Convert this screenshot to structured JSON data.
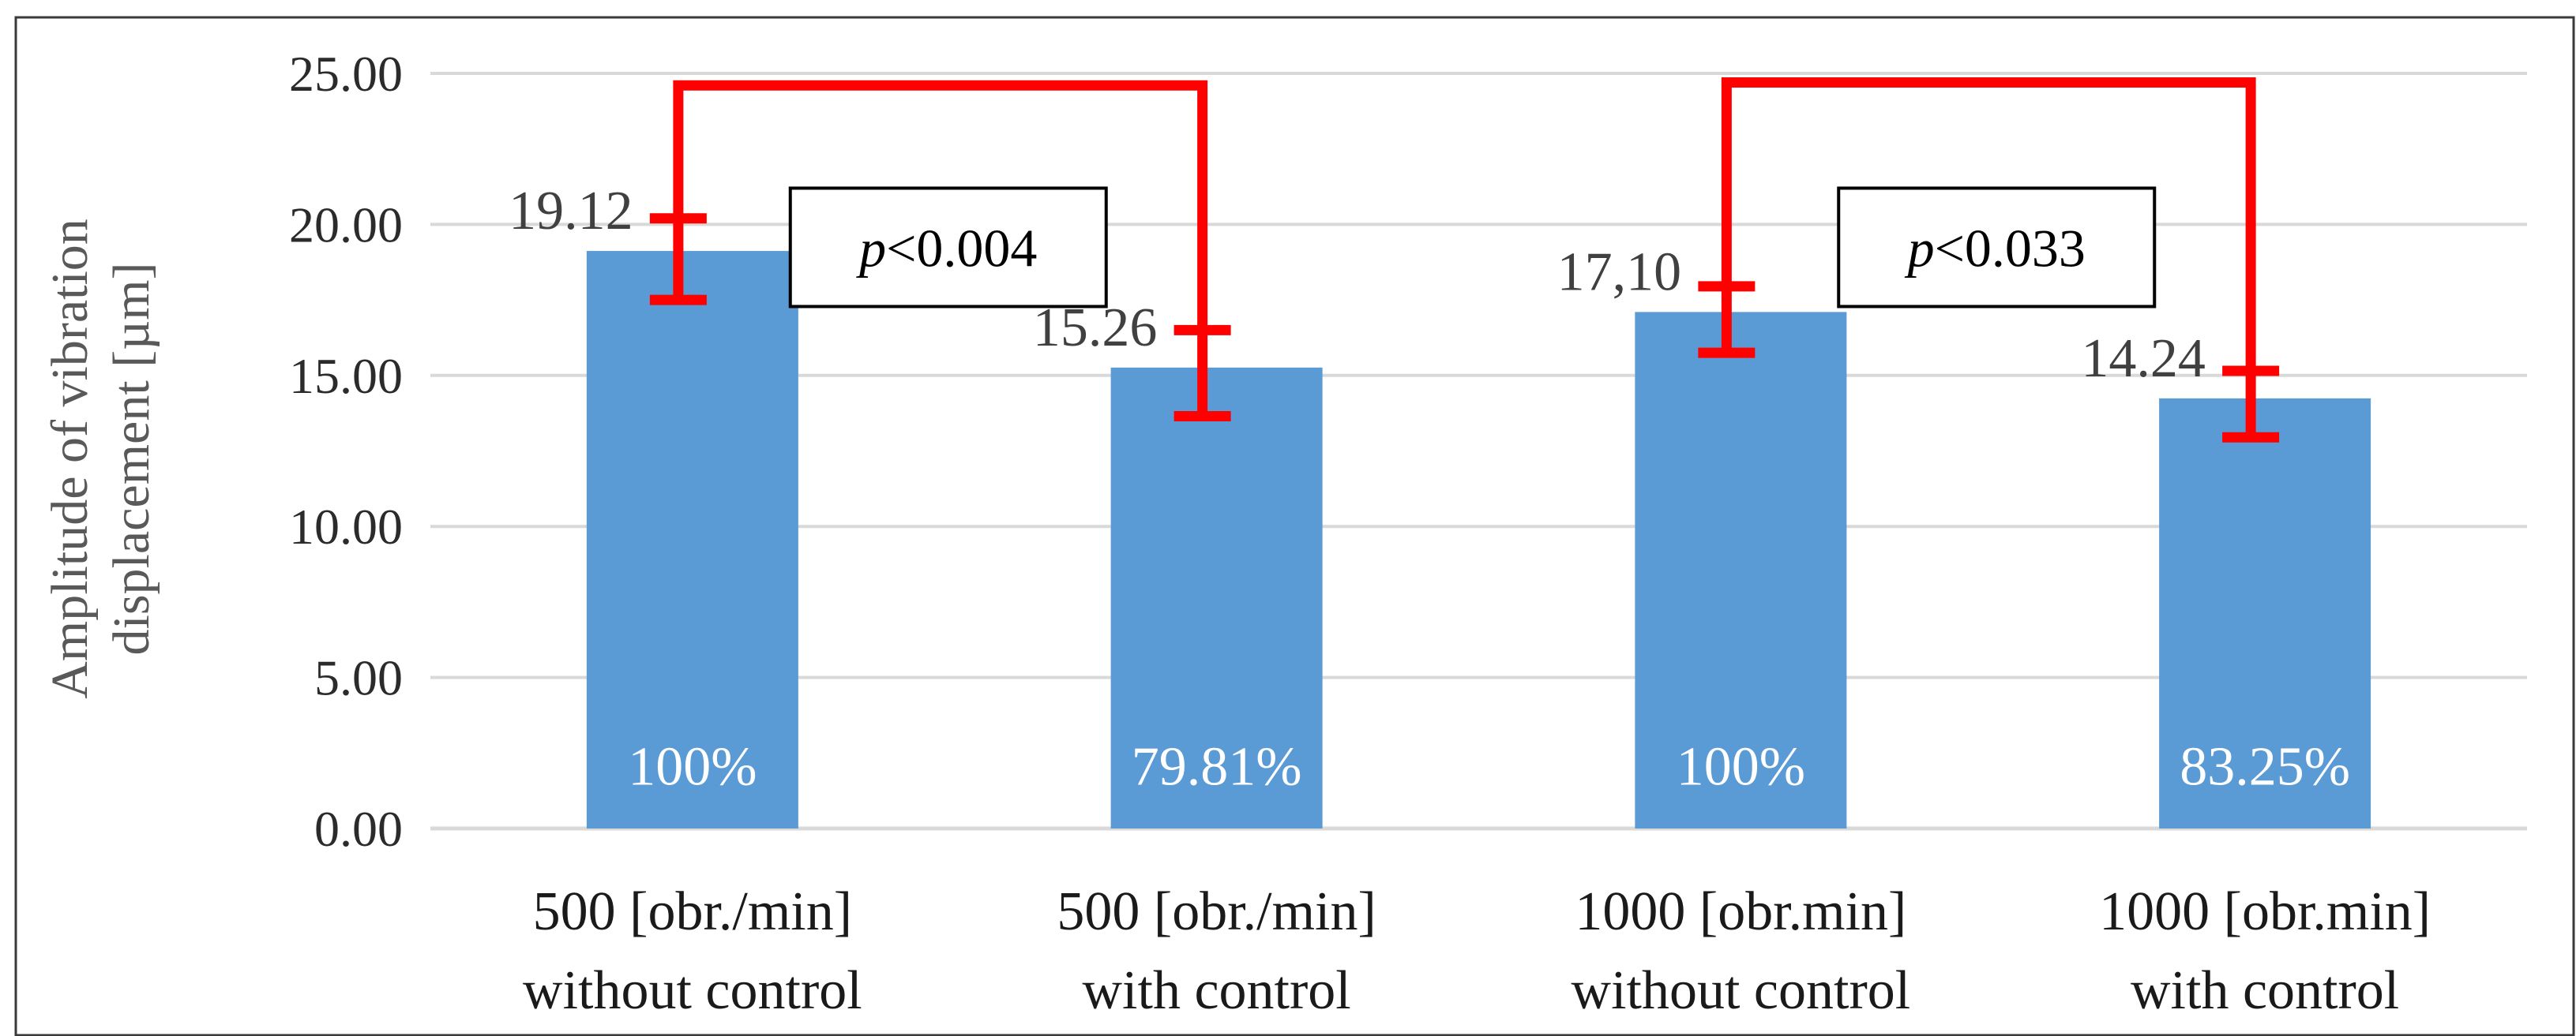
{
  "chart_data": {
    "type": "bar",
    "title": "",
    "xlabel": "",
    "ylabel": "Amplitude of vibration displacement [µm]",
    "ylabel_lines": [
      "Amplitude of vibration",
      "displacement [µm]"
    ],
    "ylim": [
      0,
      25
    ],
    "yticks": [
      0,
      5,
      10,
      15,
      20,
      25
    ],
    "ytick_labels": [
      "0.00",
      "5.00",
      "10.00",
      "15.00",
      "20.00",
      "25.00"
    ],
    "grid": true,
    "categories": [
      [
        "500 [obr./min]",
        "without control"
      ],
      [
        "500 [obr./min]",
        "with control"
      ],
      [
        "1000 [obr.min]",
        "without control"
      ],
      [
        "1000 [obr.min]",
        "with control"
      ]
    ],
    "values": [
      19.12,
      15.26,
      17.1,
      14.24
    ],
    "value_labels": [
      "19.12",
      "15.26",
      "17,10",
      "14.24"
    ],
    "percent_labels": [
      "100%",
      "79.81%",
      "100%",
      "83.25%"
    ],
    "error_bars": [
      {
        "low": 17.5,
        "high": 20.2
      },
      {
        "low": 13.65,
        "high": 16.5
      },
      {
        "low": 15.75,
        "high": 17.95
      },
      {
        "low": 12.95,
        "high": 15.15
      }
    ],
    "significance": [
      {
        "between": [
          0,
          1
        ],
        "label_prefix": "p",
        "label_suffix": "<0.004",
        "level": 24.6
      },
      {
        "between": [
          2,
          3
        ],
        "label_prefix": "p",
        "label_suffix": "<0.033",
        "level": 24.7
      }
    ],
    "colors": {
      "bar": "#5b9bd5",
      "error": "#ff0000",
      "grid": "#d9d9d9"
    }
  }
}
